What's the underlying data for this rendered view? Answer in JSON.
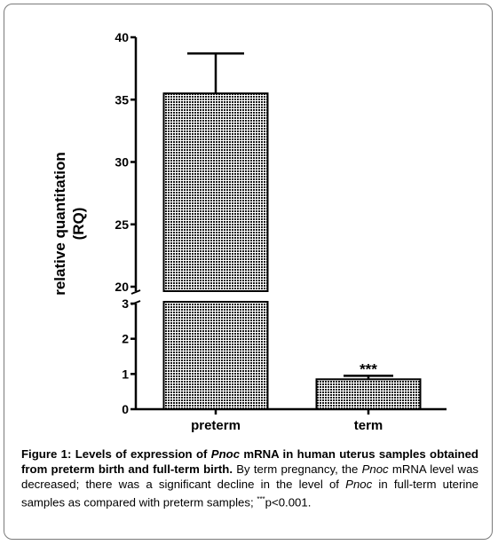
{
  "chart_data": {
    "type": "bar",
    "categories": [
      "preterm",
      "term"
    ],
    "values": [
      35.5,
      0.85
    ],
    "error_upper": [
      38.7,
      0.95
    ],
    "ylabel_line1": "relative quantitation",
    "ylabel_line2": "(RQ)",
    "axis_break": true,
    "lower_ylim": [
      0,
      3
    ],
    "upper_ylim": [
      20,
      40
    ],
    "lower_ticks": [
      "0",
      "1",
      "2",
      "3"
    ],
    "upper_ticks": [
      "20",
      "25",
      "30",
      "35",
      "40"
    ],
    "significance": [
      "",
      "***"
    ],
    "grid": false
  },
  "caption": {
    "bold_part1": "Figure 1: Levels of expression of ",
    "bold_italic": "Pnoc",
    "bold_part2": " mRNA in human uterus samples obtained from preterm birth and full-term birth.",
    "text1": " By term pregnancy, the ",
    "italic1": "Pnoc",
    "text2": " mRNA level was decreased; there was a significant decline in the level of ",
    "italic2": "Pnoc",
    "text3": " in full-term uterine samples as compared with preterm samples; ",
    "sup": "***",
    "text4": "p<0.001."
  }
}
